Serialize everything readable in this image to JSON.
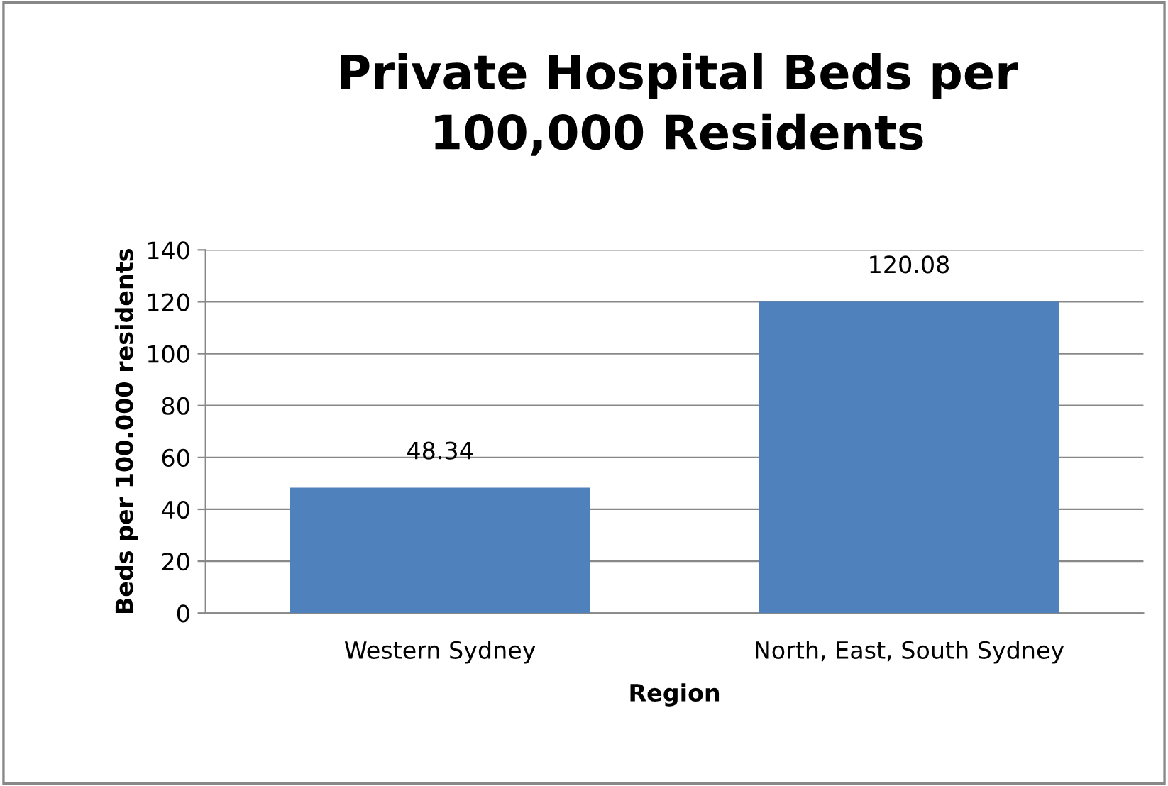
{
  "chart_data": {
    "type": "bar",
    "title": "Private Hospital Beds per\n100,000 Residents",
    "xlabel": "Region",
    "ylabel": "Beds per 100.000 residents",
    "categories": [
      "Western Sydney",
      "North, East, South Sydney"
    ],
    "values": [
      48.34,
      120.08
    ],
    "color": "#4f81bd",
    "ylim": [
      0,
      140
    ],
    "yticks": [
      0,
      20,
      40,
      60,
      80,
      100,
      120,
      140
    ],
    "grid": "y",
    "data_labels": true,
    "legend": false
  }
}
